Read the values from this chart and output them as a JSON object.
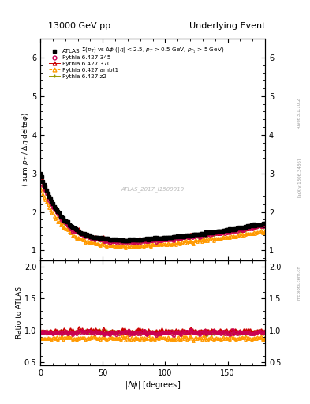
{
  "title_left": "13000 GeV pp",
  "title_right": "Underlying Event",
  "watermark": "ATLAS_2017_I1509919",
  "rivet_text": "Rivet 3.1.10.2",
  "arxiv_text": "[arXiv:1306.3436]",
  "mcplots_text": "mcplots.cern.ch",
  "ylabel_main": "<sum p_{T} / #Delta#eta delta#phi>",
  "ylabel_ratio": "Ratio to ATLAS",
  "xlabel": "|#Delta #phi| [degrees]",
  "ylim_main": [
    0.75,
    6.5
  ],
  "ylim_ratio": [
    0.45,
    2.1
  ],
  "yticks_main": [
    1,
    2,
    3,
    4,
    5,
    6
  ],
  "yticks_ratio": [
    0.5,
    1.0,
    1.5,
    2.0
  ],
  "xlim": [
    0,
    180
  ],
  "xticks": [
    0,
    50,
    100,
    150
  ],
  "series": [
    {
      "label": "ATLAS",
      "color": "#000000"
    },
    {
      "label": "Pythia 6.427 345",
      "color": "#cc0055"
    },
    {
      "label": "Pythia 6.427 370",
      "color": "#cc0000"
    },
    {
      "label": "Pythia 6.427 ambt1",
      "color": "#ff9900"
    },
    {
      "label": "Pythia 6.427 z2",
      "color": "#999900"
    }
  ]
}
